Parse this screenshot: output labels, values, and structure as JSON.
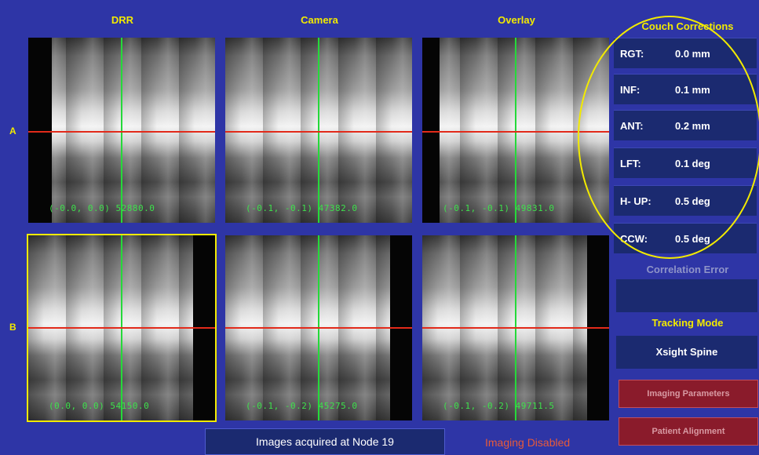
{
  "headers": [
    "DRR",
    "Camera",
    "Overlay"
  ],
  "rows": [
    "A",
    "B"
  ],
  "images": [
    {
      "readout": "(-0.0, 0.0) 52880.0"
    },
    {
      "readout": "(-0.1, -0.1) 47382.0"
    },
    {
      "readout": "(-0.1, -0.1) 49831.0"
    },
    {
      "readout": "(0.0, 0.0) 54150.0"
    },
    {
      "readout": "(-0.1, -0.2) 45275.0"
    },
    {
      "readout": "(-0.1, -0.2) 49711.5"
    }
  ],
  "couch": {
    "title": "Couch Corrections",
    "items": [
      {
        "label": "RGT:",
        "value": "0.0 mm"
      },
      {
        "label": "INF:",
        "value": "0.1 mm"
      },
      {
        "label": "ANT:",
        "value": "0.2 mm"
      },
      {
        "label": "LFT:",
        "value": "0.1 deg"
      },
      {
        "label": "H- UP:",
        "value": "0.5 deg"
      },
      {
        "label": "CCW:",
        "value": "0.5 deg"
      }
    ]
  },
  "correlation": {
    "title": "Correlation Error",
    "value": ""
  },
  "tracking": {
    "title": "Tracking Mode",
    "value": "Xsight Spine"
  },
  "buttons": {
    "imaging_parameters": "Imaging Parameters",
    "patient_alignment": "Patient Alignment"
  },
  "status": {
    "acquired": "Images acquired at Node 19",
    "imaging": "Imaging Disabled"
  },
  "colors": {
    "background": "#2e35a6",
    "accent": "#f2ea00",
    "crosshair_v": "#25d93a",
    "crosshair_h": "#e22a1a",
    "alert": "#e85a3a"
  }
}
